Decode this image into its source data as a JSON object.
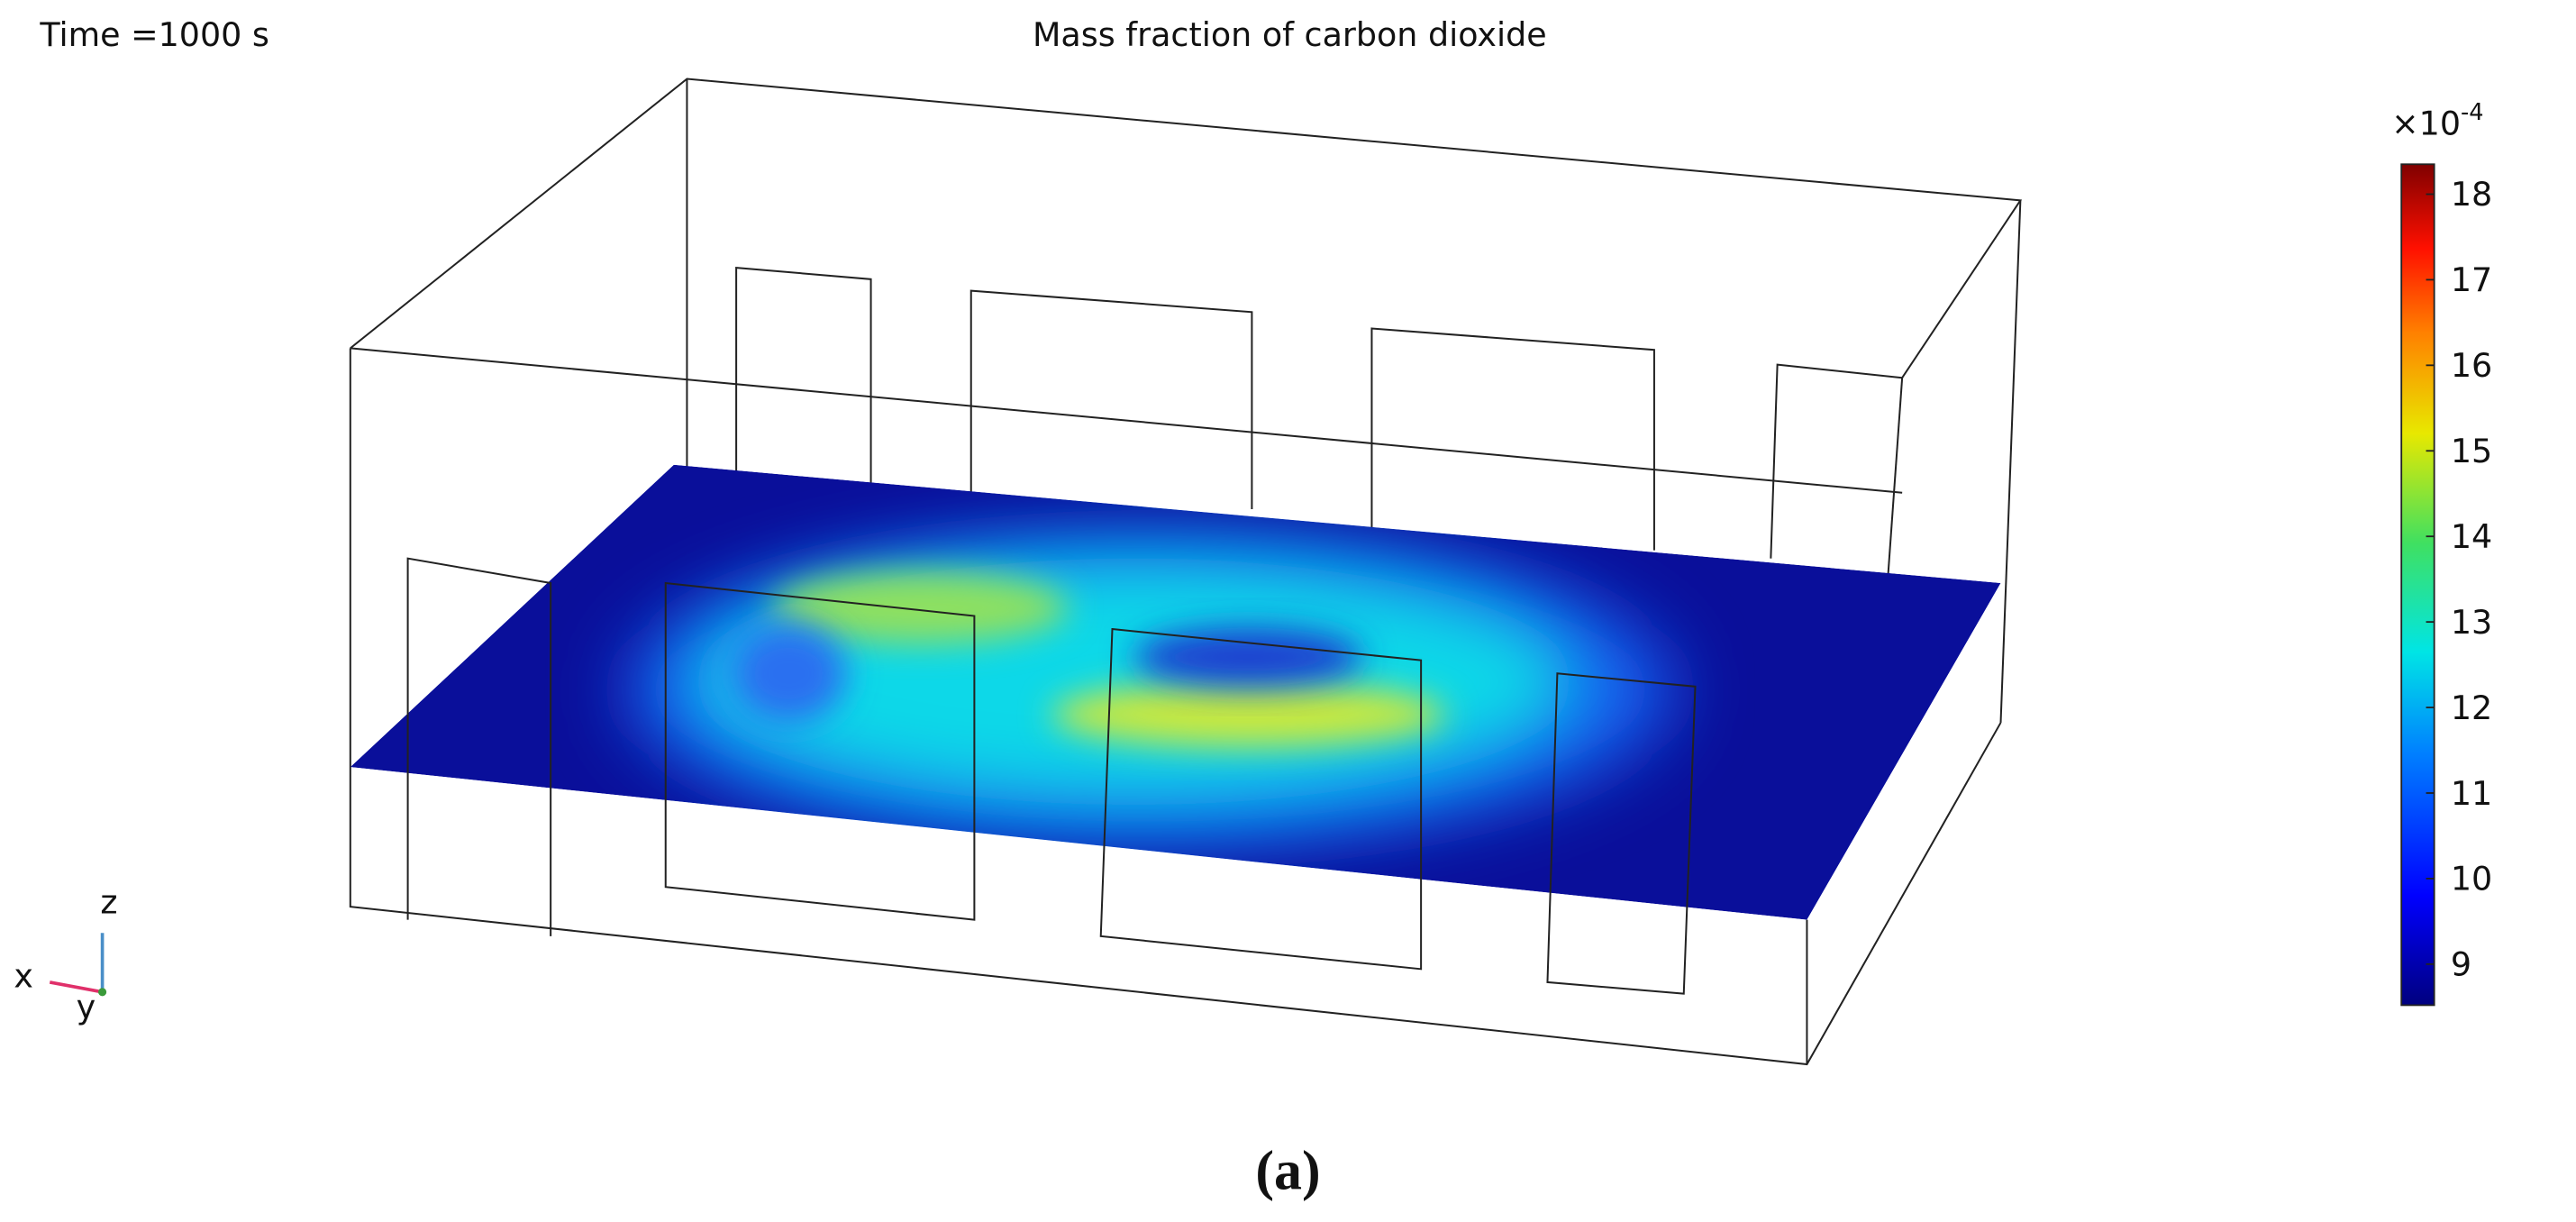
{
  "time_label": "Time =1000 s",
  "title": "Mass fraction of carbon dioxide",
  "colorbar": {
    "multiplier": "×10",
    "exponent": "-4",
    "lim": [
      8.52,
      18.35
    ],
    "ticks": [
      9,
      10,
      11,
      12,
      13,
      14,
      15,
      16,
      17,
      18
    ]
  },
  "axes_triad": {
    "z": "z",
    "x": "x",
    "y": "y"
  },
  "caption": "(a)"
}
